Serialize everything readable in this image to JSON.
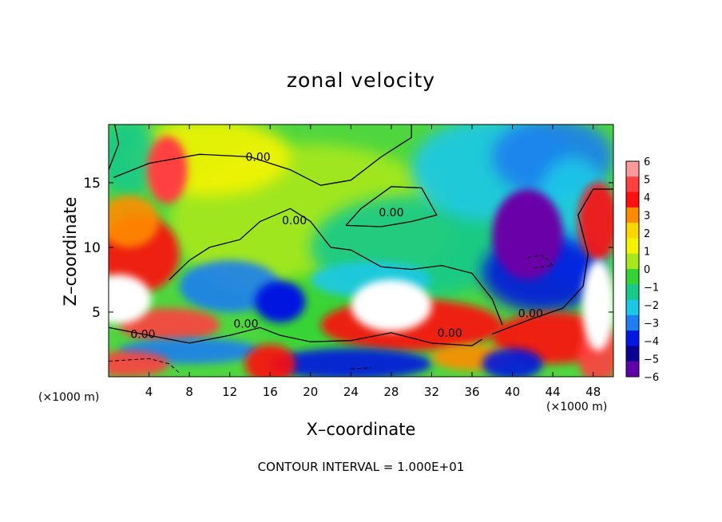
{
  "chart_data": {
    "type": "heatmap",
    "title": "zonal velocity",
    "xlabel": "X–coordinate",
    "ylabel": "Z–coordinate",
    "x_unit": "(×1000 m)",
    "footnote": "CONTOUR INTERVAL = 1.000E+01",
    "xlim": [
      0,
      50
    ],
    "ylim": [
      0,
      19.5
    ],
    "xticks": [
      4,
      8,
      12,
      16,
      20,
      24,
      28,
      32,
      36,
      40,
      44,
      48
    ],
    "yticks": [
      5,
      10,
      15
    ],
    "colorbar": {
      "levels": [
        6,
        5,
        4,
        3,
        2,
        1,
        0,
        -1,
        -2,
        -3,
        -4,
        -5,
        -6
      ],
      "range": [
        -6,
        6
      ],
      "colors": [
        "#ff9a9a",
        "#ff4040",
        "#ff1010",
        "#ff8c00",
        "#ffd700",
        "#f4f400",
        "#a8e81c",
        "#35d435",
        "#19c98a",
        "#1cc8e8",
        "#1e7ff0",
        "#0018e0",
        "#0a0095",
        "#6000a8"
      ]
    },
    "contour_labels": [
      {
        "text": "0.00",
        "x": 14.8,
        "y": 16.7
      },
      {
        "text": "0.00",
        "x": 28.0,
        "y": 12.4
      },
      {
        "text": "0.00",
        "x": 18.4,
        "y": 11.8
      },
      {
        "text": "0.00",
        "x": 3.4,
        "y": 3.0
      },
      {
        "text": "0.00",
        "x": 13.6,
        "y": 3.8
      },
      {
        "text": "0.00",
        "x": 33.8,
        "y": 3.1
      },
      {
        "text": "0.00",
        "x": 41.8,
        "y": 4.6
      }
    ],
    "features": [
      {
        "value": 6.5,
        "x": 1.0,
        "y": 6.0,
        "rx": 3.2,
        "ry": 1.9
      },
      {
        "value": 6.5,
        "x": 28.0,
        "y": 5.5,
        "rx": 4.0,
        "ry": 2.0
      },
      {
        "value": 6.5,
        "x": 48.5,
        "y": 5.5,
        "rx": 1.6,
        "ry": 3.5
      },
      {
        "value": 4.5,
        "x": 5.8,
        "y": 16.0,
        "rx": 2.0,
        "ry": 2.6
      },
      {
        "value": -6.5,
        "x": 41.5,
        "y": 11.0,
        "rx": 3.5,
        "ry": 3.5
      },
      {
        "value": -4.0,
        "x": 17.0,
        "y": 5.8,
        "rx": 2.5,
        "ry": 1.6
      }
    ]
  }
}
